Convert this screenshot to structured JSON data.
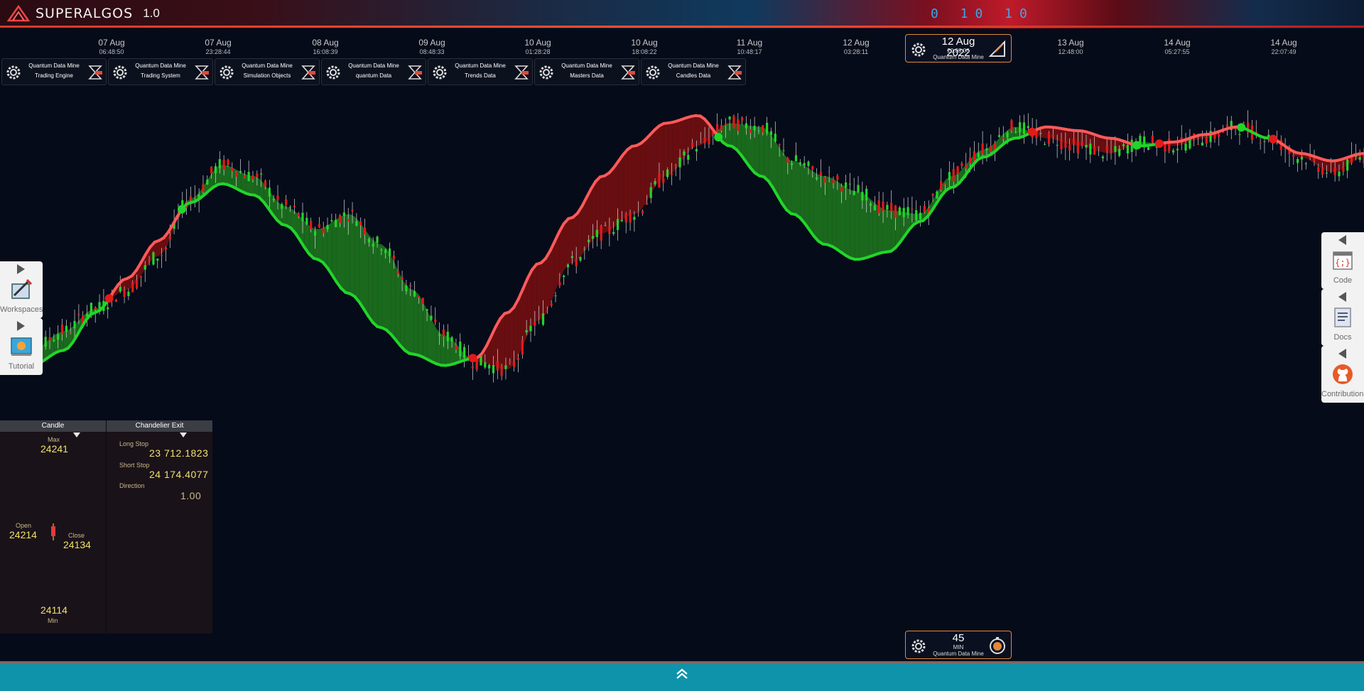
{
  "app": {
    "logo_text": "SUPERALGOS",
    "version": "1.0",
    "binary": "0 10 10"
  },
  "time_axis": [
    {
      "date": "07 Aug",
      "time": "06:48:50"
    },
    {
      "date": "07 Aug",
      "time": "23:28:44"
    },
    {
      "date": "08 Aug",
      "time": "16:08:39"
    },
    {
      "date": "09 Aug",
      "time": "08:48:33"
    },
    {
      "date": "10 Aug",
      "time": "01:28:28"
    },
    {
      "date": "10 Aug",
      "time": "18:08:22"
    },
    {
      "date": "11 Aug",
      "time": "10:48:17"
    },
    {
      "date": "12 Aug",
      "time": "03:28:11"
    },
    {
      "date": "13 Aug",
      "time": "12:48:00"
    },
    {
      "date": "14 Aug",
      "time": "05:27:55"
    },
    {
      "date": "14 Aug",
      "time": "22:07:49"
    }
  ],
  "date_badge": {
    "date": "12 Aug 2022",
    "time": "20:08:06",
    "source": "Quantum Data Mine"
  },
  "timeframe_badge": {
    "value": "45",
    "unit": "MIN",
    "source": "Quantum Data Mine"
  },
  "layer_tabs": [
    {
      "line1": "Quantum Data Mine",
      "line2": "Trading Engine"
    },
    {
      "line1": "Quantum Data Mine",
      "line2": "Trading System"
    },
    {
      "line1": "Quantum Data Mine",
      "line2": "Simulation Objects"
    },
    {
      "line1": "Quantum Data Mine",
      "line2": "quantum Data"
    },
    {
      "line1": "Quantum Data Mine",
      "line2": "Trends Data"
    },
    {
      "line1": "Quantum Data Mine",
      "line2": "Masters Data"
    },
    {
      "line1": "Quantum Data Mine",
      "line2": "Candles Data"
    }
  ],
  "side_left": [
    {
      "label": "Workspaces",
      "icon": "workspaces-icon"
    },
    {
      "label": "Tutorial",
      "icon": "tutorial-icon"
    }
  ],
  "side_right": [
    {
      "label": "Code",
      "icon": "code-icon"
    },
    {
      "label": "Docs",
      "icon": "docs-icon"
    },
    {
      "label": "Contributions",
      "icon": "github-icon"
    }
  ],
  "candle_panel": {
    "title": "Candle",
    "max_label": "Max",
    "max": "24241",
    "open_label": "Open",
    "open": "24214",
    "close_label": "Close",
    "close": "24134",
    "min_label": "Min",
    "min": "24114"
  },
  "chandelier_panel": {
    "title": "Chandelier Exit",
    "long_stop_label": "Long Stop",
    "long_stop": "23 712.1823",
    "short_stop_label": "Short Stop",
    "short_stop": "24 174.4077",
    "direction_label": "Direction",
    "direction": "1.00"
  },
  "colors": {
    "bull": "#22d52a",
    "bear": "#e21a1a",
    "bull_fill": "#1f7a1f",
    "bear_fill": "#7a0f10",
    "accent": "#e2883a",
    "bottom_bar": "#0e93aa"
  },
  "chart_data": {
    "type": "line",
    "series": [
      {
        "role": "price",
        "values": [
          24120,
          24100,
          24150,
          24210,
          24260,
          24350,
          24500,
          24590,
          24560,
          24480,
          24420,
          24460,
          24380,
          24260,
          24140,
          24070,
          24050,
          24180,
          24330,
          24410,
          24460,
          24560,
          24640,
          24700,
          24690,
          24600,
          24560,
          24520,
          24470,
          24460,
          24560,
          24630,
          24690,
          24660,
          24640,
          24620,
          24650,
          24640,
          24660,
          24690,
          24660,
          24610,
          24570,
          24610
        ]
      },
      {
        "role": "trailing-stop",
        "values": [
          24040,
          24060,
          24100,
          24200,
          24290,
          24390,
          24490,
          24540,
          24510,
          24430,
          24340,
          24250,
          24160,
          24090,
          24060,
          24080,
          24200,
          24330,
          24450,
          24560,
          24640,
          24700,
          24720,
          24640,
          24560,
          24460,
          24380,
          24340,
          24360,
          24440,
          24530,
          24610,
          24660,
          24690,
          24680,
          24660,
          24640,
          24650,
          24670,
          24690,
          24660,
          24620,
          24600,
          24620
        ]
      }
    ],
    "ylim": [
      23900,
      24800
    ]
  }
}
